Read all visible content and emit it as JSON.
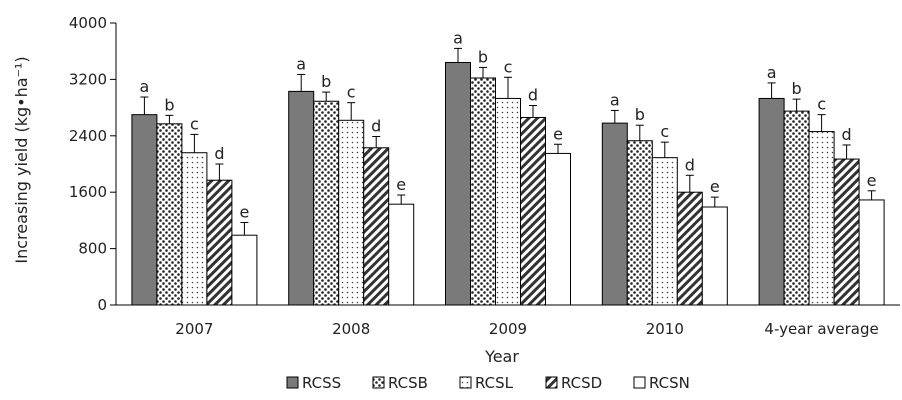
{
  "chart_data": {
    "type": "bar",
    "xlabel": "Year",
    "ylabel": "Increasing yield (kg•ha⁻¹)",
    "ylim": [
      0,
      4000
    ],
    "yticks": [
      "0",
      "800",
      "1600",
      "2400",
      "3200",
      "4000"
    ],
    "categories": [
      "2007",
      "2008",
      "2009",
      "2010",
      "4-year average"
    ],
    "grid": false,
    "legend_position": "bottom",
    "series": [
      {
        "name": "RCSS",
        "pattern": "solid-gray",
        "values": [
          2700,
          3030,
          3440,
          2580,
          2930
        ],
        "errors": [
          250,
          240,
          200,
          180,
          220
        ],
        "letters": [
          "a",
          "a",
          "a",
          "a",
          "a"
        ]
      },
      {
        "name": "RCSB",
        "pattern": "dots-dense",
        "values": [
          2570,
          2890,
          3220,
          2330,
          2750
        ],
        "errors": [
          120,
          130,
          150,
          220,
          170
        ],
        "letters": [
          "b",
          "b",
          "b",
          "b",
          "b"
        ]
      },
      {
        "name": "RCSL",
        "pattern": "dots-sparse",
        "values": [
          2160,
          2620,
          2930,
          2090,
          2460
        ],
        "errors": [
          260,
          250,
          300,
          220,
          240
        ],
        "letters": [
          "c",
          "c",
          "c",
          "c",
          "c"
        ]
      },
      {
        "name": "RCSD",
        "pattern": "diagonal-hatch",
        "values": [
          1770,
          2230,
          2660,
          1600,
          2070
        ],
        "errors": [
          230,
          160,
          170,
          240,
          200
        ],
        "letters": [
          "d",
          "d",
          "d",
          "d",
          "d"
        ]
      },
      {
        "name": "RCSN",
        "pattern": "white",
        "values": [
          990,
          1430,
          2150,
          1390,
          1490
        ],
        "errors": [
          180,
          130,
          130,
          140,
          130
        ],
        "letters": [
          "e",
          "e",
          "e",
          "e",
          "e"
        ]
      }
    ]
  }
}
